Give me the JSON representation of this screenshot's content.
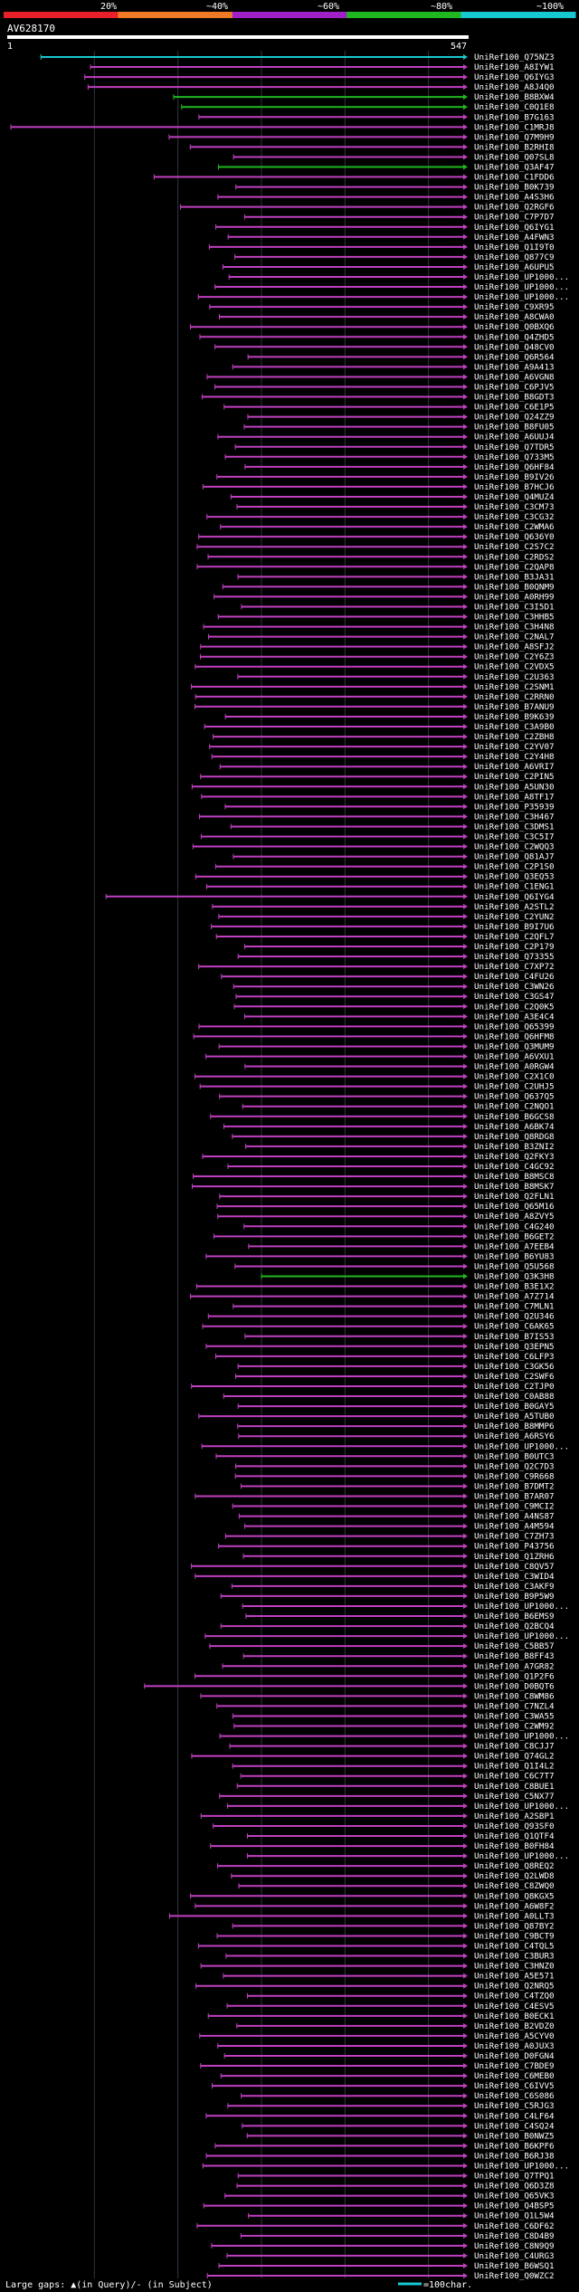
{
  "chart_data": {
    "type": "alignment-overview",
    "title": "AV628170",
    "query_start_label": "1",
    "query_length_label": "547",
    "query_length": 547,
    "identity_scale": {
      "ticks": [
        "20%",
        "~40%",
        "~60%",
        "~80%",
        "~100%"
      ],
      "colors": [
        "#e8202a",
        "#ee7a26",
        "#a020c8",
        "#20b820",
        "#18c8d0"
      ]
    },
    "legend": {
      "gaps_text": "Large gaps: ▲(in Query)/- (in Subject)",
      "scale_text": "=100char.",
      "scale_color": "#18c8d0"
    },
    "hits": [
      "UniRef100_Q75NZ3",
      "UniRef100_A8IYW1",
      "UniRef100_Q6IYG3",
      "UniRef100_A8J4Q0",
      "UniRef100_B8BXW4",
      "UniRef100_C0Q1E8",
      "UniRef100_B7G163",
      "UniRef100_C1MRJ8",
      "UniRef100_Q7M9H9",
      "UniRef100_B2RHI8",
      "UniRef100_Q07SL8",
      "UniRef100_Q3AF47",
      "UniRef100_C1FDD6",
      "UniRef100_B0K739",
      "UniRef100_A4S3H6",
      "UniRef100_Q2RGF6",
      "UniRef100_C7P7D7",
      "UniRef100_Q6IYG1",
      "UniRef100_A4FWN3",
      "UniRef100_Q1I9T0",
      "UniRef100_Q877C9",
      "UniRef100_A6UPU5",
      "UniRef100_UP1000...",
      "UniRef100_UP1000...",
      "UniRef100_UP1000...",
      "UniRef100_C9XR95",
      "UniRef100_A8CWA0",
      "UniRef100_Q0BXQ6",
      "UniRef100_Q4ZHD5",
      "UniRef100_Q48CV0",
      "UniRef100_Q6R564",
      "UniRef100_A9A413",
      "UniRef100_A6VGN8",
      "UniRef100_C6PJV5",
      "UniRef100_B8GDT3",
      "UniRef100_C6E1P5",
      "UniRef100_Q24ZZ9",
      "UniRef100_B8FU05",
      "UniRef100_A6UUJ4",
      "UniRef100_Q7TDR5",
      "UniRef100_Q733M5",
      "UniRef100_Q6HF84",
      "UniRef100_B9IV26",
      "UniRef100_B7HCJ6",
      "UniRef100_Q4MUZ4",
      "UniRef100_C3CM73",
      "UniRef100_C3CG32",
      "UniRef100_C2WMA6",
      "UniRef100_Q636Y0",
      "UniRef100_C2S7C2",
      "UniRef100_C2RDS2",
      "UniRef100_C2QAP8",
      "UniRef100_B3JA31",
      "UniRef100_B0QNM9",
      "UniRef100_A0RH99",
      "UniRef100_C3I5D1",
      "UniRef100_C3HHB5",
      "UniRef100_C3H4N8",
      "UniRef100_C2NAL7",
      "UniRef100_A8SFJ2",
      "UniRef100_C2Y6Z3",
      "UniRef100_C2VDX5",
      "UniRef100_C2U363",
      "UniRef100_C2SNM1",
      "UniRef100_C2RRN0",
      "UniRef100_B7ANU9",
      "UniRef100_B9K639",
      "UniRef100_C3A9B0",
      "UniRef100_C2ZBH8",
      "UniRef100_C2YV07",
      "UniRef100_C2Y4H8",
      "UniRef100_A6VRI7",
      "UniRef100_C2PIN5",
      "UniRef100_A5UN30",
      "UniRef100_A8TF17",
      "UniRef100_P35939",
      "UniRef100_C3H467",
      "UniRef100_C3DMS1",
      "UniRef100_C3C5I7",
      "UniRef100_C2WQQ3",
      "UniRef100_Q81AJ7",
      "UniRef100_C2P1S0",
      "UniRef100_Q3EQ53",
      "UniRef100_C1ENG1",
      "UniRef100_Q6IYG4",
      "UniRef100_A2STL2",
      "UniRef100_C2YUN2",
      "UniRef100_B9I7U6",
      "UniRef100_C2QFL7",
      "UniRef100_C2P179",
      "UniRef100_Q73355",
      "UniRef100_C7XP72",
      "UniRef100_C4FU26",
      "UniRef100_C3WN26",
      "UniRef100_C3GS47",
      "UniRef100_C2Q0K5",
      "UniRef100_A3E4C4",
      "UniRef100_Q65399",
      "UniRef100_Q6HFM8",
      "UniRef100_Q3MUM9",
      "UniRef100_A6VXU1",
      "UniRef100_A0RGW4",
      "UniRef100_C2X1C0",
      "UniRef100_C2UHJ5",
      "UniRef100_Q637Q5",
      "UniRef100_C2NQO1",
      "UniRef100_B6GCS8",
      "UniRef100_A6BK74",
      "UniRef100_Q8RDG8",
      "UniRef100_B3ZNI2",
      "UniRef100_Q2FKY3",
      "UniRef100_C4GC92",
      "UniRef100_B8MSC8",
      "UniRef100_B8MSK7",
      "UniRef100_Q2FLN1",
      "UniRef100_Q65M16",
      "UniRef100_A8ZVY5",
      "UniRef100_C4G240",
      "UniRef100_B6GET2",
      "UniRef100_A7EEB4",
      "UniRef100_B6YU83",
      "UniRef100_Q5U568",
      "UniRef100_Q3K3H8",
      "UniRef100_B3E1X2",
      "UniRef100_A7Z714",
      "UniRef100_C7MLN1",
      "UniRef100_Q2U346",
      "UniRef100_C6AK65",
      "UniRef100_B7IS53",
      "UniRef100_Q3EPN5",
      "UniRef100_C6LFP3",
      "UniRef100_C3GK56",
      "UniRef100_C2SWF6",
      "UniRef100_C2TJP0",
      "UniRef100_C0AB88",
      "UniRef100_B0GAY5",
      "UniRef100_A5TUB0",
      "UniRef100_B8MMP6",
      "UniRef100_A6RSY6",
      "UniRef100_UP1000...",
      "UniRef100_B0UTC3",
      "UniRef100_Q2C7D3",
      "UniRef100_C9R668",
      "UniRef100_B7DMT2",
      "UniRef100_B7AR07",
      "UniRef100_C9MCI2",
      "UniRef100_A4NS87",
      "UniRef100_A4M594",
      "UniRef100_C7ZH73",
      "UniRef100_P43756",
      "UniRef100_Q1ZRH6",
      "UniRef100_C8QV57",
      "UniRef100_C3WID4",
      "UniRef100_C3AKF9",
      "UniRef100_B9P5W9",
      "UniRef100_UP1000...",
      "UniRef100_B6EMS9",
      "UniRef100_Q2BCQ4",
      "UniRef100_UP1000...",
      "UniRef100_C5BB57",
      "UniRef100_B8FF43",
      "UniRef100_A7GR82",
      "UniRef100_Q1P2F6",
      "UniRef100_D0BQT6",
      "UniRef100_C8WM86",
      "UniRef100_C7NZL4",
      "UniRef100_C3WA55",
      "UniRef100_C2WM92",
      "UniRef100_UP1000...",
      "UniRef100_C8CJJ7",
      "UniRef100_Q74GL2",
      "UniRef100_Q1I4L2",
      "UniRef100_C6C7T7",
      "UniRef100_C8BUE1",
      "UniRef100_C5NX77",
      "UniRef100_UP1000...",
      "UniRef100_A2SBP1",
      "UniRef100_Q93SF0",
      "UniRef100_Q1QTF4",
      "UniRef100_B0FH84",
      "UniRef100_UP1000...",
      "UniRef100_Q8REQ2",
      "UniRef100_Q2LWD8",
      "UniRef100_C8ZWQ0",
      "UniRef100_Q8KGX5",
      "UniRef100_A6W8F2",
      "UniRef100_A0LLT3",
      "UniRef100_Q87BY2",
      "UniRef100_C9BCT9",
      "UniRef100_C4TQL5",
      "UniRef100_C3BUR3",
      "UniRef100_C3HNZ0",
      "UniRef100_A5E571",
      "UniRef100_Q2NRQ5",
      "UniRef100_C4TZQ0",
      "UniRef100_C4ESV5",
      "UniRef100_B0ECK1",
      "UniRef100_B2VDZ0",
      "UniRef100_A5CYV0",
      "UniRef100_A0JUX3",
      "UniRef100_D0FGN4",
      "UniRef100_C7BDE9",
      "UniRef100_C6MEB0",
      "UniRef100_C6IVV5",
      "UniRef100_C6S086",
      "UniRef100_C5RJG3",
      "UniRef100_C4LF64",
      "UniRef100_C4SQ24",
      "UniRef100_B0NWZ5",
      "UniRef100_B6KPF6",
      "UniRef100_B6RJ38",
      "UniRef100_UP1000...",
      "UniRef100_Q7TPQ1",
      "UniRef100_Q6D3Z8",
      "UniRef100_Q65VK3",
      "UniRef100_Q4BSP5",
      "UniRef100_Q1L5W4",
      "UniRef100_C6DF62",
      "UniRef100_C8D4B9",
      "UniRef100_C8N9Q9",
      "UniRef100_C4URG3",
      "UniRef100_B6WSQ1",
      "UniRef100_Q0WZC2"
    ]
  }
}
